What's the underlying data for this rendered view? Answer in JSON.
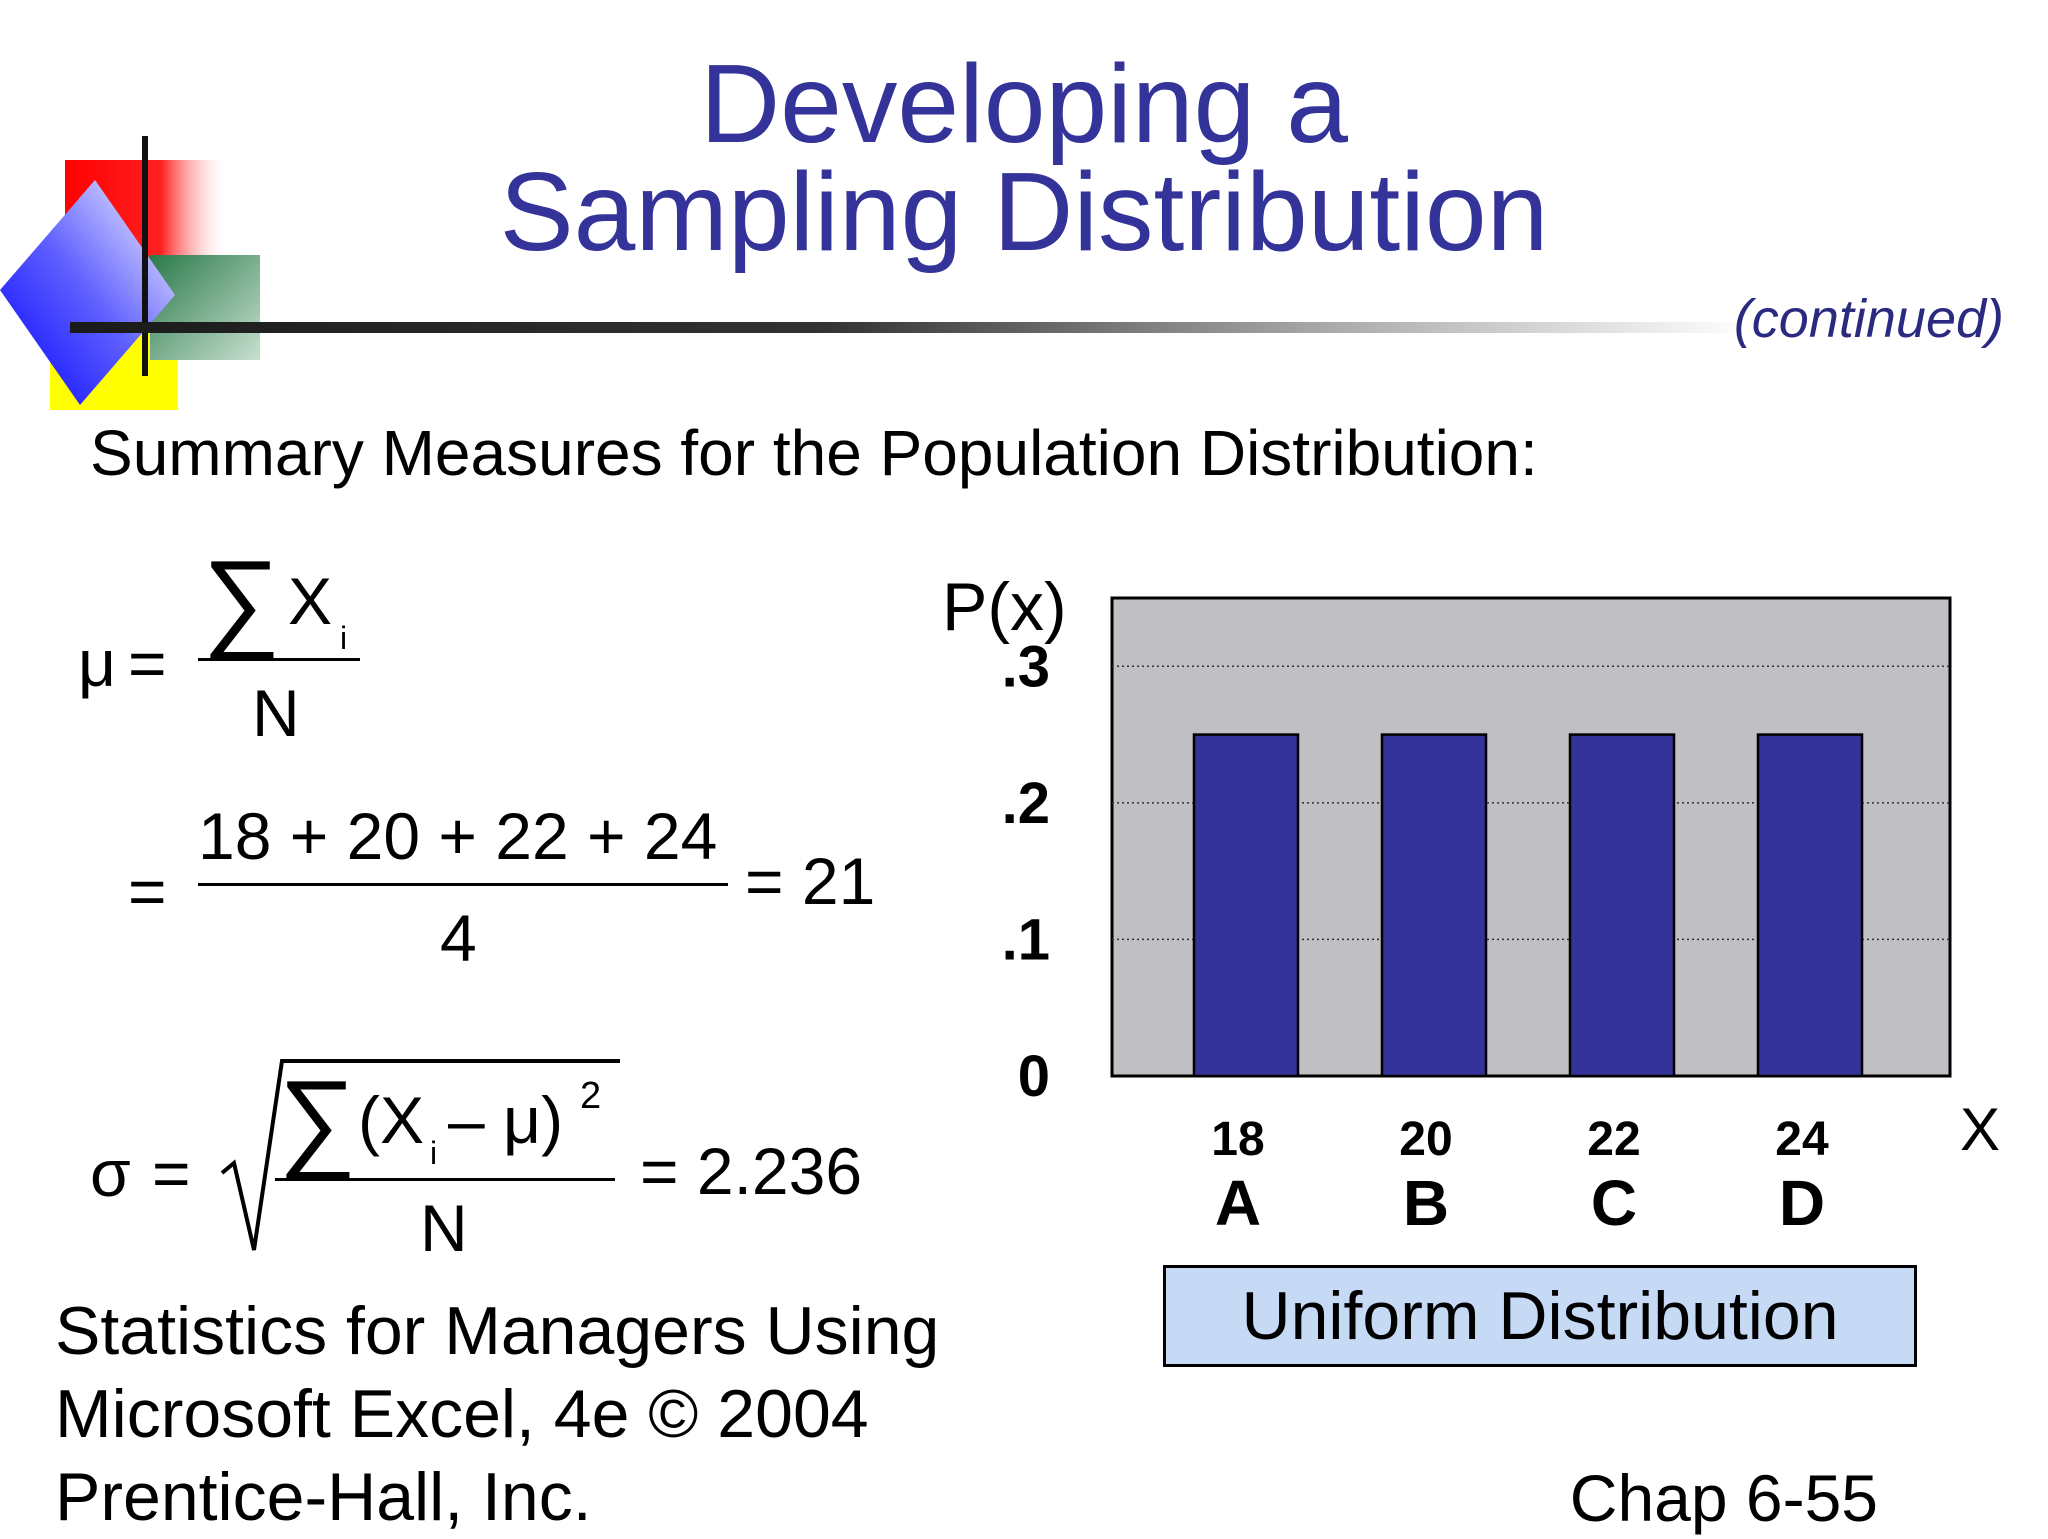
{
  "slide": {
    "title_line1": "Developing a",
    "title_line2": "Sampling Distribution",
    "continued": "(continued)",
    "subtitle": "Summary Measures for the Population Distribution:"
  },
  "formulas": {
    "mu_symbol": "μ",
    "equals": "=",
    "sigma_sum": "∑",
    "x_var": "X",
    "sub_i": "i",
    "n": "N",
    "mean_numerator": "18 + 20 + 22 + 24",
    "mean_denominator": "4",
    "mean_result": "= 21",
    "sigma_symbol": "σ",
    "sd_numerator": "(X",
    "sd_numerator_rest": " – μ)",
    "sd_power": "2",
    "sd_result": "= 2.236"
  },
  "chart_data": {
    "type": "bar",
    "ylabel": "P(x)",
    "xlabel": "X",
    "categories": [
      "18",
      "20",
      "22",
      "24"
    ],
    "category_letters": [
      "A",
      "B",
      "C",
      "D"
    ],
    "values": [
      0.25,
      0.25,
      0.25,
      0.25
    ],
    "ylim": [
      0,
      0.35
    ],
    "yticks": [
      0,
      0.1,
      0.2,
      0.3
    ],
    "ytick_labels": [
      "0",
      ".1",
      ".2",
      ".3"
    ],
    "grid": true,
    "plot_background": "#c0bfc3",
    "bar_color": "#333399"
  },
  "caption": "Uniform Distribution",
  "footer": {
    "line1": "Statistics for Managers Using",
    "line2": "Microsoft Excel, 4e © 2004",
    "line3": "Prentice-Hall, Inc.",
    "chapter": "Chap 6-55"
  },
  "colors": {
    "title": "#333399",
    "caption_bg": "#c6d9f5"
  }
}
